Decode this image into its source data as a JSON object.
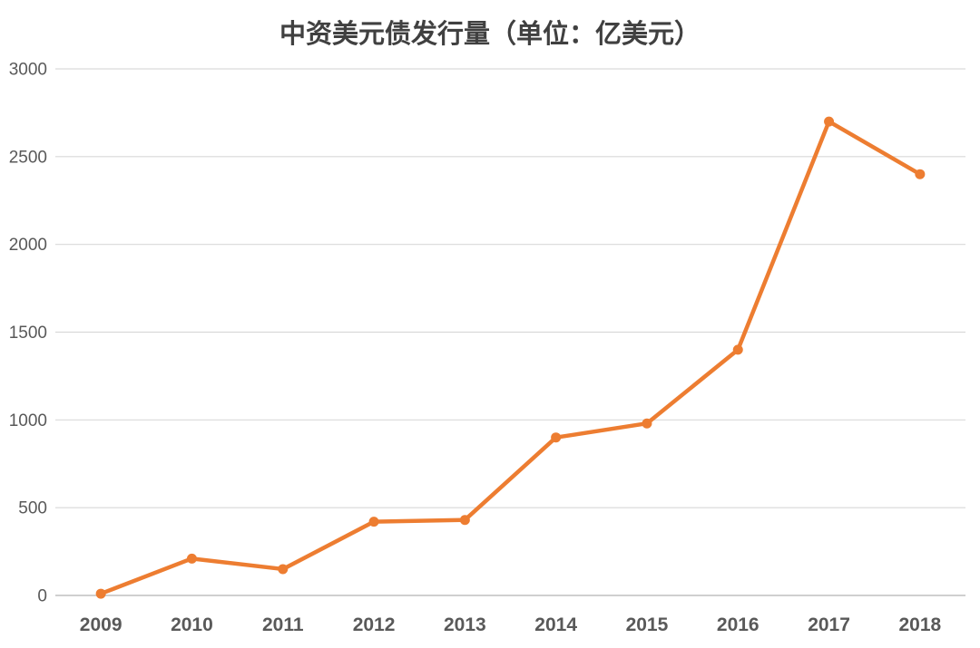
{
  "chart_data": {
    "type": "line",
    "title": "中资美元债发行量（单位：亿美元）",
    "categories": [
      "2009",
      "2010",
      "2011",
      "2012",
      "2013",
      "2014",
      "2015",
      "2016",
      "2017",
      "2018"
    ],
    "values": [
      10,
      210,
      150,
      420,
      430,
      900,
      980,
      1400,
      2700,
      2400
    ],
    "xlabel": "",
    "ylabel": "",
    "ylim": [
      0,
      3000
    ],
    "yticks": [
      0,
      500,
      1000,
      1500,
      2000,
      2500,
      3000
    ],
    "grid": true,
    "legend_position": "none",
    "colors": {
      "line": "#ED7D31",
      "marker": "#ED7D31",
      "gridline": "#D9D9D9",
      "axis_line": "#BFBFBF",
      "title_text": "#404040",
      "tick_text": "#595959",
      "background": "#FFFFFF"
    }
  }
}
